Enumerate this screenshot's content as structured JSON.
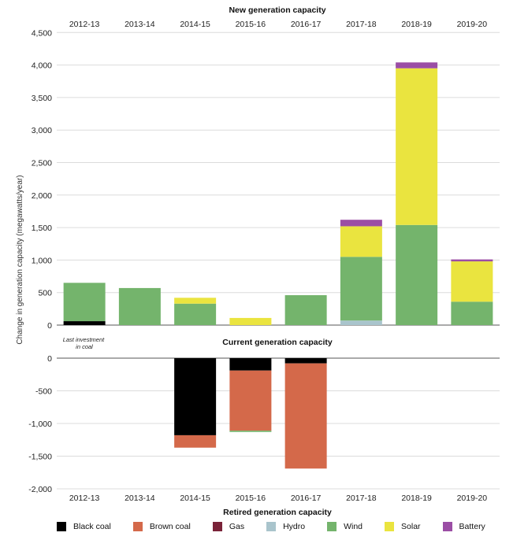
{
  "chart_data": {
    "type": "bar",
    "stacked": true,
    "top_title": "New generation capacity",
    "middle_title": "Current generation capacity",
    "bottom_title": "Retired generation capacity",
    "ylabel": "Change in generation capacity (megawatts/year)",
    "categories": [
      "2012-13",
      "2013-14",
      "2014-15",
      "2015-16",
      "2016-17",
      "2017-18",
      "2018-19",
      "2019-20"
    ],
    "annotation": {
      "category": "2012-13",
      "lines": [
        "Last investment",
        "in coal"
      ]
    },
    "new_panel": {
      "ylim": [
        0,
        4500
      ],
      "ticks": [
        0,
        500,
        1000,
        1500,
        2000,
        2500,
        3000,
        3500,
        4000,
        4500
      ],
      "tick_labels": [
        "0",
        "500",
        "1,000",
        "1,500",
        "2,000",
        "2,500",
        "3,000",
        "3,500",
        "4,000",
        "4,500"
      ],
      "series": [
        {
          "name": "Black coal",
          "color": "#000000",
          "values": [
            60,
            0,
            0,
            0,
            0,
            0,
            0,
            0
          ]
        },
        {
          "name": "Brown coal",
          "color": "#D4694A",
          "values": [
            0,
            0,
            0,
            0,
            0,
            0,
            0,
            0
          ]
        },
        {
          "name": "Gas",
          "color": "#7A2339",
          "values": [
            0,
            0,
            0,
            0,
            0,
            0,
            0,
            0
          ]
        },
        {
          "name": "Hydro",
          "color": "#A9C4CC",
          "values": [
            0,
            0,
            0,
            0,
            0,
            70,
            0,
            0
          ]
        },
        {
          "name": "Wind",
          "color": "#74B46C",
          "values": [
            590,
            570,
            330,
            0,
            460,
            980,
            1540,
            360
          ]
        },
        {
          "name": "Solar",
          "color": "#EAE43F",
          "values": [
            0,
            0,
            90,
            110,
            0,
            470,
            2410,
            620
          ]
        },
        {
          "name": "Battery",
          "color": "#9B4EA5",
          "values": [
            0,
            0,
            0,
            0,
            0,
            100,
            90,
            30
          ]
        }
      ]
    },
    "retired_panel": {
      "ylim": [
        -2000,
        0
      ],
      "ticks": [
        0,
        -500,
        -1000,
        -1500,
        -2000
      ],
      "tick_labels": [
        "0",
        "-500",
        "-1,000",
        "-1,500",
        "-2,000"
      ],
      "series": [
        {
          "name": "Black coal",
          "color": "#000000",
          "values": [
            0,
            0,
            -1180,
            -190,
            -80,
            0,
            0,
            0
          ]
        },
        {
          "name": "Brown coal",
          "color": "#D4694A",
          "values": [
            0,
            0,
            -190,
            -920,
            -1610,
            0,
            0,
            0
          ]
        },
        {
          "name": "Gas",
          "color": "#7A2339",
          "values": [
            0,
            0,
            0,
            0,
            0,
            0,
            0,
            0
          ]
        },
        {
          "name": "Hydro",
          "color": "#A9C4CC",
          "values": [
            0,
            0,
            0,
            0,
            0,
            0,
            0,
            0
          ]
        },
        {
          "name": "Wind",
          "color": "#74B46C",
          "values": [
            0,
            0,
            0,
            -20,
            0,
            0,
            0,
            0
          ]
        },
        {
          "name": "Solar",
          "color": "#EAE43F",
          "values": [
            0,
            0,
            0,
            0,
            0,
            0,
            0,
            0
          ]
        },
        {
          "name": "Battery",
          "color": "#9B4EA5",
          "values": [
            0,
            0,
            0,
            0,
            0,
            0,
            0,
            0
          ]
        }
      ]
    },
    "legend": [
      {
        "label": "Black coal",
        "color": "#000000"
      },
      {
        "label": "Brown coal",
        "color": "#D4694A"
      },
      {
        "label": "Gas",
        "color": "#7A2339"
      },
      {
        "label": "Hydro",
        "color": "#A9C4CC"
      },
      {
        "label": "Wind",
        "color": "#74B46C"
      },
      {
        "label": "Solar",
        "color": "#EAE43F"
      },
      {
        "label": "Battery",
        "color": "#9B4EA5"
      }
    ],
    "legend_position": "bottom",
    "grid": true
  }
}
